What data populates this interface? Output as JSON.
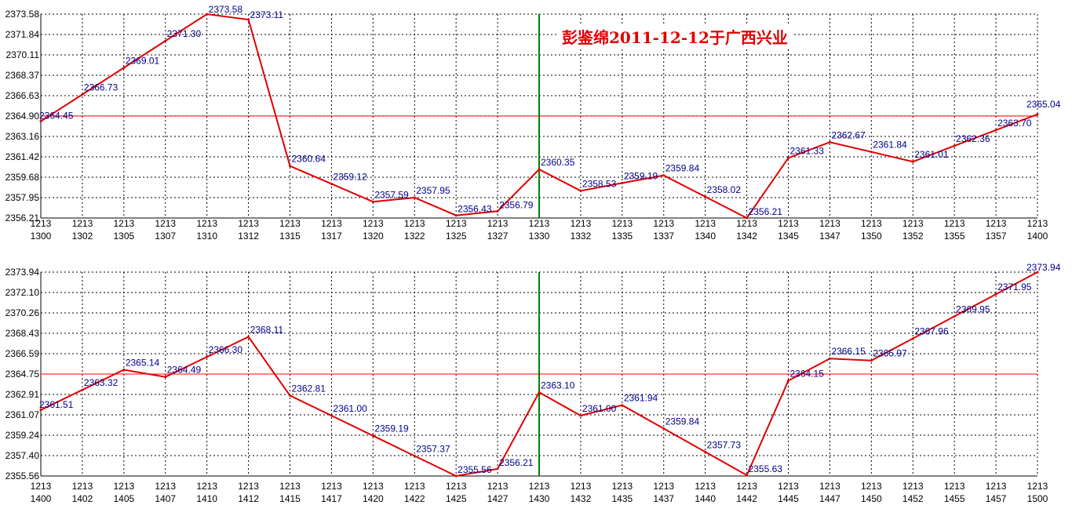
{
  "title": "彭鉴绵2011-12-12于广西兴业",
  "colors": {
    "series": "#e00000",
    "label": "#00008b",
    "reference": "#ff0000",
    "marker": "#008000",
    "grid": "#000000"
  },
  "chart_data": [
    {
      "type": "line",
      "x_top": [
        "1213",
        "1213",
        "1213",
        "1213",
        "1213",
        "1213",
        "1213",
        "1213",
        "1213",
        "1213",
        "1213",
        "1213",
        "1213",
        "1213",
        "1213",
        "1213",
        "1213",
        "1213",
        "1213",
        "1213",
        "1213",
        "1213",
        "1213",
        "1213",
        "1213"
      ],
      "x_bottom": [
        "1300",
        "1302",
        "1305",
        "1307",
        "1310",
        "1312",
        "1315",
        "1317",
        "1320",
        "1322",
        "1325",
        "1327",
        "1330",
        "1332",
        "1335",
        "1337",
        "1340",
        "1342",
        "1345",
        "1347",
        "1350",
        "1352",
        "1355",
        "1357",
        "1400"
      ],
      "y_ticks": [
        "2373.58",
        "2371.84",
        "2370.11",
        "2368.37",
        "2366.63",
        "2364.90",
        "2363.16",
        "2361.42",
        "2359.68",
        "2357.95",
        "2356.21"
      ],
      "ylim": [
        2356.21,
        2373.58
      ],
      "reference_value": 2364.9,
      "marker_index": 12,
      "values": [
        2364.45,
        2366.73,
        2369.01,
        2371.3,
        2373.58,
        2373.11,
        2360.64,
        2359.12,
        2357.59,
        2357.95,
        2356.43,
        2356.79,
        2360.35,
        2358.53,
        2359.19,
        2359.84,
        2358.02,
        2356.21,
        2361.33,
        2362.67,
        2361.84,
        2361.01,
        2362.36,
        2363.7,
        2365.04
      ],
      "labels": [
        "2364.45",
        "2366.73",
        "2369.01",
        "2371.30",
        "2373.58",
        "2373.11",
        "2360.64",
        "2359.12",
        "2357.59",
        "2357.95",
        "2356.43",
        "2356.79",
        "2360.35",
        "2358.53",
        "2359.19",
        "2359.84",
        "2358.02",
        "2356.21",
        "2361.33",
        "2362.67",
        "2361.84",
        "2361.01",
        "2362.36",
        "2363.70",
        "2365.04"
      ]
    },
    {
      "type": "line",
      "x_top": [
        "1213",
        "1213",
        "1213",
        "1213",
        "1213",
        "1213",
        "1213",
        "1213",
        "1213",
        "1213",
        "1213",
        "1213",
        "1213",
        "1213",
        "1213",
        "1213",
        "1213",
        "1213",
        "1213",
        "1213",
        "1213",
        "1213",
        "1213",
        "1213",
        "1213"
      ],
      "x_bottom": [
        "1400",
        "1402",
        "1405",
        "1407",
        "1410",
        "1412",
        "1415",
        "1417",
        "1420",
        "1422",
        "1425",
        "1427",
        "1430",
        "1432",
        "1435",
        "1437",
        "1440",
        "1442",
        "1445",
        "1447",
        "1450",
        "1452",
        "1455",
        "1457",
        "1500"
      ],
      "y_ticks": [
        "2373.94",
        "2372.10",
        "2370.26",
        "2368.43",
        "2366.59",
        "2364.75",
        "2362.91",
        "2361.07",
        "2359.24",
        "2357.40",
        "2355.56"
      ],
      "ylim": [
        2355.56,
        2373.94
      ],
      "reference_value": 2364.75,
      "marker_index": 12,
      "values": [
        2361.51,
        2363.32,
        2365.14,
        2364.49,
        2366.3,
        2368.11,
        2362.81,
        2361.0,
        2359.19,
        2357.37,
        2355.56,
        2356.21,
        2363.1,
        2361.0,
        2361.94,
        2359.84,
        2357.73,
        2355.63,
        2364.15,
        2366.15,
        2365.97,
        2367.96,
        2369.95,
        2371.95,
        2373.94
      ],
      "labels": [
        "2361.51",
        "2363.32",
        "2365.14",
        "2364.49",
        "2366.30",
        "2368.11",
        "2362.81",
        "2361.00",
        "2359.19",
        "2357.37",
        "2355.56",
        "2356.21",
        "2363.10",
        "2361.00",
        "2361.94",
        "2359.84",
        "2357.73",
        "2355.63",
        "2364.15",
        "2366.15",
        "2365.97",
        "2367.96",
        "2369.95",
        "2371.95",
        "2373.94"
      ]
    }
  ]
}
